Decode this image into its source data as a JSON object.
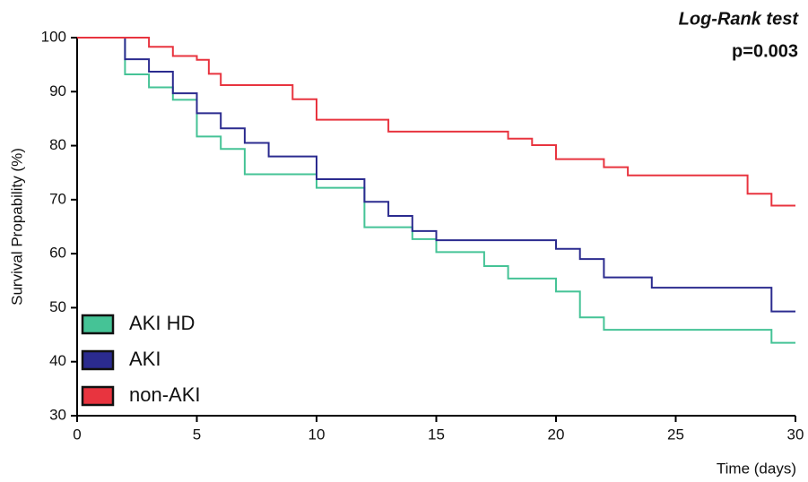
{
  "chart_data": {
    "type": "step",
    "annotation_title": "Log-Rank test",
    "annotation_p": "p=0.003",
    "ylabel": "Survival Propability (%)",
    "xlabel": "Time (days)",
    "xlim": [
      0,
      30
    ],
    "xticks": [
      0,
      5,
      10,
      15,
      20,
      25,
      30
    ],
    "ylim": [
      30,
      100
    ],
    "yticks": [
      30,
      40,
      50,
      60,
      70,
      80,
      90,
      100
    ],
    "legend": "lower-left",
    "series": [
      {
        "name": "AKI HD",
        "color": "#45c396",
        "x": [
          0,
          2,
          3,
          4,
          5,
          6,
          7,
          10,
          12,
          14,
          15,
          17,
          18,
          20,
          21,
          22,
          29,
          30
        ],
        "values": [
          100,
          93.2,
          90.8,
          88.5,
          81.7,
          79.4,
          74.7,
          72.2,
          64.9,
          62.7,
          60.3,
          57.7,
          55.4,
          53.0,
          48.2,
          45.9,
          43.5,
          43.5
        ]
      },
      {
        "name": "AKI",
        "color": "#2b2b8f",
        "x": [
          0,
          2,
          3,
          4,
          5,
          6,
          7,
          8,
          10,
          12,
          13,
          14,
          15,
          20,
          21,
          22,
          24,
          29,
          30
        ],
        "values": [
          100,
          96.0,
          93.7,
          89.7,
          86.0,
          83.2,
          80.5,
          78.0,
          73.8,
          69.6,
          67.0,
          64.2,
          62.5,
          60.9,
          59.0,
          55.6,
          53.7,
          49.3,
          49.3
        ]
      },
      {
        "name": "non-AKI",
        "color": "#e8343f",
        "x": [
          0,
          3,
          4,
          5,
          5.5,
          6,
          9,
          10,
          13,
          18,
          19,
          20,
          22,
          23,
          28,
          29,
          30
        ],
        "values": [
          100,
          98.3,
          96.6,
          95.9,
          93.3,
          91.2,
          88.6,
          84.8,
          82.6,
          81.3,
          80.1,
          77.5,
          76.0,
          74.5,
          71.1,
          68.9,
          68.9
        ]
      }
    ]
  }
}
